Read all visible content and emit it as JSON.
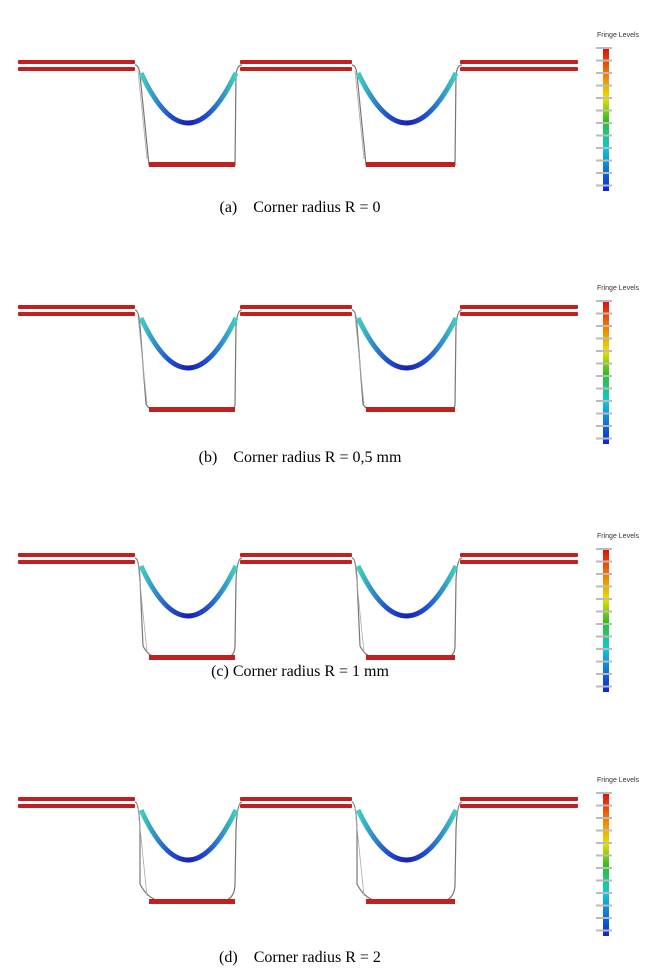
{
  "panels": [
    {
      "caption": "(a)    Corner radius R = 0",
      "legend_title": "Fringe Levels"
    },
    {
      "caption": "(b)    Corner radius R = 0,5 mm",
      "legend_title": "Fringe Levels"
    },
    {
      "caption": "(c) Corner radius R = 1 mm",
      "legend_title": "Fringe Levels"
    },
    {
      "caption": "(d)    Corner radius R = 2",
      "legend_title": "Fringe Levels"
    }
  ]
}
